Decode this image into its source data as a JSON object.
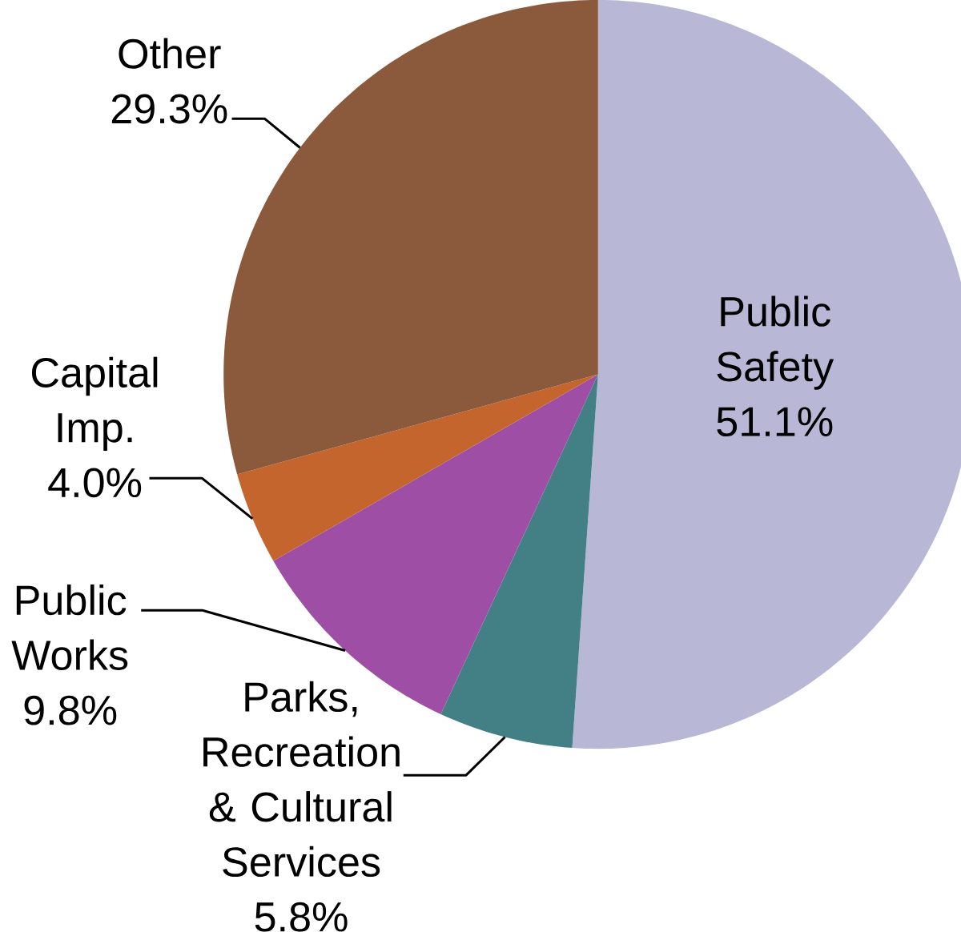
{
  "chart_data": {
    "type": "pie",
    "categories": [
      "Public Safety",
      "Parks, Recreation & Cultural Services",
      "Public Works",
      "Capital Imp.",
      "Other"
    ],
    "values": [
      51.1,
      5.8,
      9.8,
      4.0,
      29.3
    ],
    "value_labels": [
      "51.1%",
      "5.8%",
      "9.8%",
      "4.0%",
      "29.3%"
    ],
    "colors": [
      "#b8b8d6",
      "#428085",
      "#9e4fa5",
      "#c4652e",
      "#8b5a3c"
    ]
  }
}
